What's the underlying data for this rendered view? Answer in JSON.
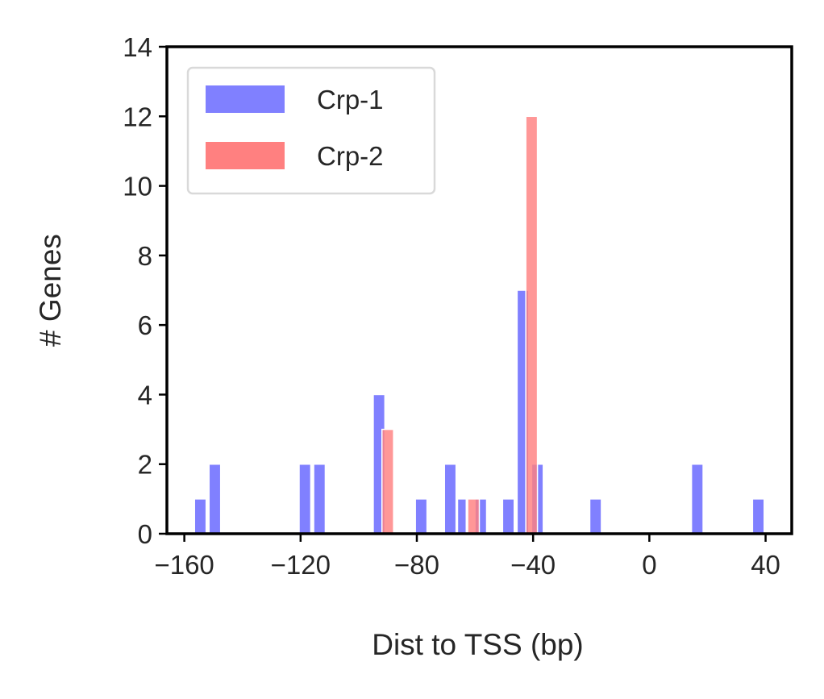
{
  "chart_data": {
    "type": "bar",
    "xlabel": "Dist to TSS (bp)",
    "ylabel": "# Genes",
    "xlim": [
      -166,
      49
    ],
    "ylim": [
      0,
      14
    ],
    "xticks": [
      -160,
      -120,
      -80,
      -40,
      0,
      40
    ],
    "xtick_labels": [
      "−160",
      "−120",
      "−80",
      "−40",
      "0",
      "40"
    ],
    "yticks": [
      0,
      2,
      4,
      6,
      8,
      10,
      12,
      14
    ],
    "ytick_labels": [
      "0",
      "2",
      "4",
      "6",
      "8",
      "10",
      "12",
      "14"
    ],
    "grid": false,
    "legend": {
      "position": "top-left"
    },
    "series": [
      {
        "name": "Crp-1",
        "color": "#8080ff",
        "bins": [
          {
            "x0": -156.5,
            "x1": -152.5,
            "value": 1
          },
          {
            "x0": -151.5,
            "x1": -147.5,
            "value": 2
          },
          {
            "x0": -120.5,
            "x1": -116.5,
            "value": 2
          },
          {
            "x0": -115.5,
            "x1": -111.5,
            "value": 2
          },
          {
            "x0": -95.0,
            "x1": -91.0,
            "value": 4
          },
          {
            "x0": -80.5,
            "x1": -76.5,
            "value": 1
          },
          {
            "x0": -70.5,
            "x1": -66.5,
            "value": 2
          },
          {
            "x0": -66.0,
            "x1": -63.0,
            "value": 1
          },
          {
            "x0": -60.0,
            "x1": -56.0,
            "value": 1
          },
          {
            "x0": -50.5,
            "x1": -46.5,
            "value": 1
          },
          {
            "x0": -45.5,
            "x1": -41.5,
            "value": 7
          },
          {
            "x0": -40.5,
            "x1": -36.5,
            "value": 2
          },
          {
            "x0": -20.5,
            "x1": -16.5,
            "value": 1
          },
          {
            "x0": 14.5,
            "x1": 18.5,
            "value": 2
          },
          {
            "x0": 35.5,
            "x1": 39.5,
            "value": 1
          }
        ]
      },
      {
        "name": "Crp-2",
        "color": "#ff8080",
        "bins": [
          {
            "x0": -92.0,
            "x1": -88.0,
            "value": 3
          },
          {
            "x0": -62.5,
            "x1": -58.5,
            "value": 1
          },
          {
            "x0": -42.5,
            "x1": -38.5,
            "value": 12
          }
        ]
      }
    ],
    "overlap_color": "#c0407f"
  }
}
